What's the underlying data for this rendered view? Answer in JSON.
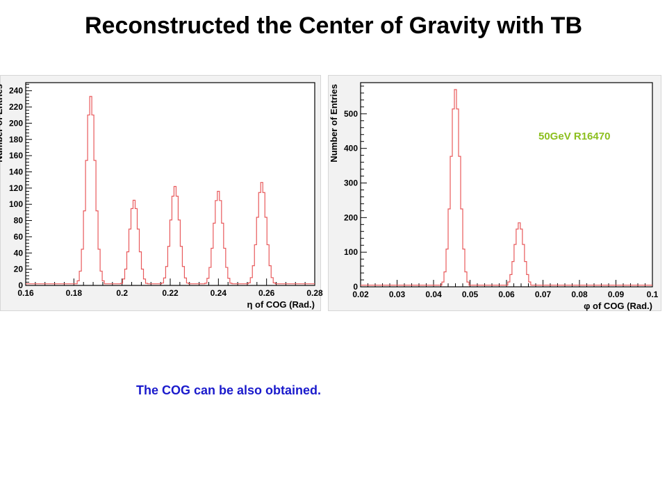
{
  "title": "Reconstructed the Center of Gravity with TB",
  "run_label": "50GeV R16470",
  "caption": "The COG can be also obtained.",
  "colors": {
    "line": "#e8595b",
    "run_label": "#8cbf1e",
    "caption": "#1a1acc"
  },
  "chart_data": [
    {
      "type": "line",
      "xlabel": "η of COG (Rad.)",
      "ylabel": "Number of Entries",
      "xlim": [
        0.16,
        0.28
      ],
      "ylim": [
        0,
        250
      ],
      "x_ticks": [
        "0.16",
        "0.18",
        "0.2",
        "0.22",
        "0.24",
        "0.26",
        "0.28"
      ],
      "y_ticks": [
        "0",
        "20",
        "40",
        "60",
        "80",
        "100",
        "120",
        "140",
        "160",
        "180",
        "200",
        "220",
        "240"
      ],
      "grid": false,
      "peaks": [
        {
          "x": 0.187,
          "height": 233
        },
        {
          "x": 0.205,
          "height": 105
        },
        {
          "x": 0.222,
          "height": 122
        },
        {
          "x": 0.24,
          "height": 116
        },
        {
          "x": 0.258,
          "height": 127
        }
      ]
    },
    {
      "type": "line",
      "xlabel": "φ of COG (Rad.)",
      "ylabel": "Number of Entries",
      "xlim": [
        0.02,
        0.1
      ],
      "ylim": [
        0,
        590
      ],
      "x_ticks": [
        "0.02",
        "0.03",
        "0.04",
        "0.05",
        "0.06",
        "0.07",
        "0.08",
        "0.09",
        "0.1"
      ],
      "y_ticks": [
        "0",
        "100",
        "200",
        "300",
        "400",
        "500"
      ],
      "grid": false,
      "peaks": [
        {
          "x": 0.046,
          "height": 570
        },
        {
          "x": 0.0635,
          "height": 185
        }
      ]
    }
  ]
}
